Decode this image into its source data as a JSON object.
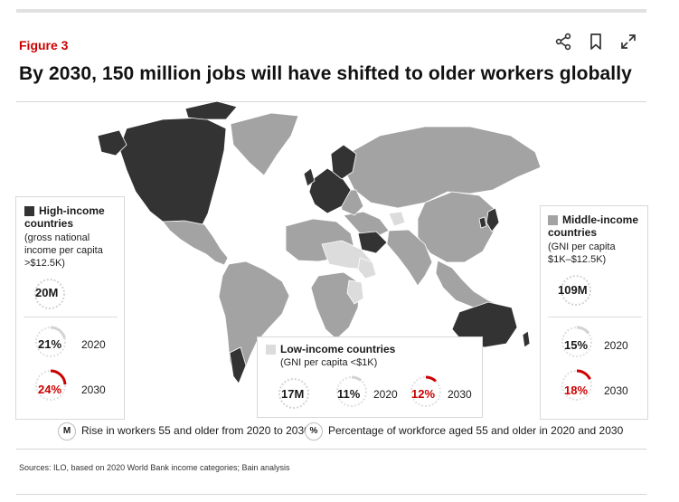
{
  "figure_label": "Figure 3",
  "title": "By 2030, 150 million jobs will have shifted to older workers globally",
  "toolbar": {
    "icons": [
      "share-icon",
      "bookmark-icon",
      "expand-icon"
    ]
  },
  "colors": {
    "high": "#333333",
    "middle": "#a3a3a3",
    "low": "#dcdcdc",
    "accent": "#cc0000",
    "ring": "#d3d3d3"
  },
  "panels": {
    "high": {
      "title_line1": "High-income",
      "title_line2": "countries",
      "desc_line1": "(gross national",
      "desc_line2": "income per capita",
      "desc_line3": ">$12.5K)",
      "rise": "20M",
      "p2020": {
        "label": "21%",
        "value": 21,
        "year": "2020"
      },
      "p2030": {
        "label": "24%",
        "value": 24,
        "year": "2030"
      }
    },
    "middle": {
      "title_line1": "Middle-income",
      "title_line2": "countries",
      "desc_line1": "(GNI per capita",
      "desc_line2": "$1K–$12.5K)",
      "rise": "109M",
      "p2020": {
        "label": "15%",
        "value": 15,
        "year": "2020"
      },
      "p2030": {
        "label": "18%",
        "value": 18,
        "year": "2030"
      }
    },
    "low": {
      "title": "Low-income countries",
      "desc": "(GNI per capita <$1K)",
      "rise": "17M",
      "p2020": {
        "label": "11%",
        "value": 11,
        "year": "2020"
      },
      "p2030": {
        "label": "12%",
        "value": 12,
        "year": "2030"
      }
    }
  },
  "key": {
    "rise_badge": "M",
    "rise_text": "Rise in workers 55 and older from 2020 to 2030",
    "pct_badge": "%",
    "pct_text": "Percentage of workforce aged 55 and older in 2020 and 2030"
  },
  "source": "Sources: ILO, based on 2020 World Bank income categories; Bain analysis"
}
